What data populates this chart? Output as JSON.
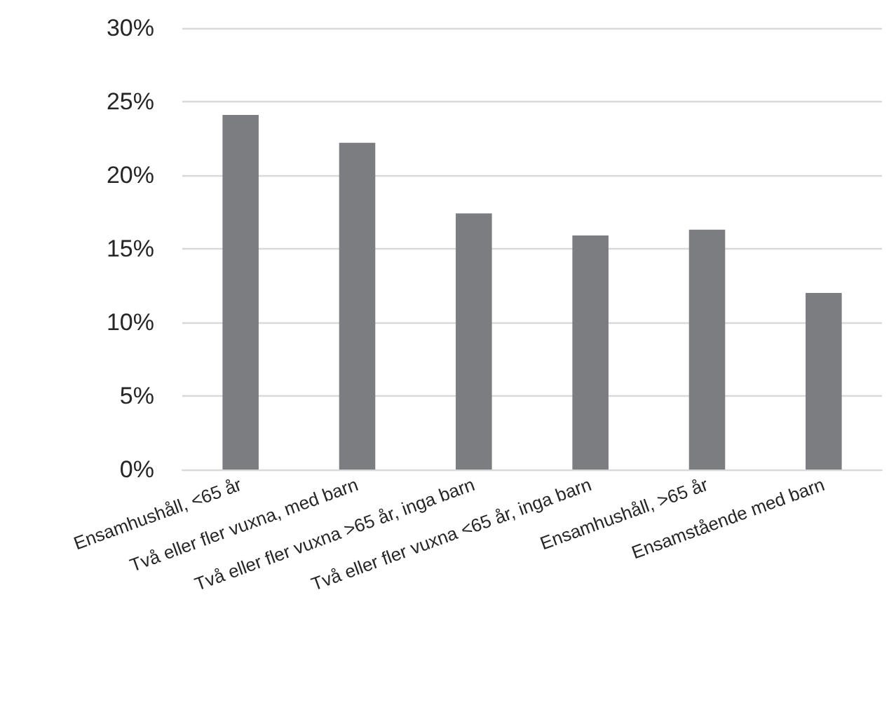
{
  "chart_data": {
    "type": "bar",
    "categories": [
      "Ensamhushåll, <65 år",
      "Två eller fler vuxna, med barn",
      "Två eller fler vuxna >65 år, inga barn",
      "Två eller fler vuxna <65 år, inga barn",
      "Ensamhushåll, >65 år",
      "Ensamstående med barn"
    ],
    "values": [
      24.1,
      22.2,
      17.4,
      15.9,
      16.3,
      12.0
    ],
    "color": "#7c7d81",
    "ylim": [
      0,
      30
    ],
    "yticks": [
      {
        "value": 0,
        "label": "0%"
      },
      {
        "value": 5,
        "label": "5%"
      },
      {
        "value": 10,
        "label": "10%"
      },
      {
        "value": 15,
        "label": "15%"
      },
      {
        "value": 20,
        "label": "20%"
      },
      {
        "value": 25,
        "label": "25%"
      },
      {
        "value": 30,
        "label": "30%"
      }
    ],
    "grid": "y"
  }
}
